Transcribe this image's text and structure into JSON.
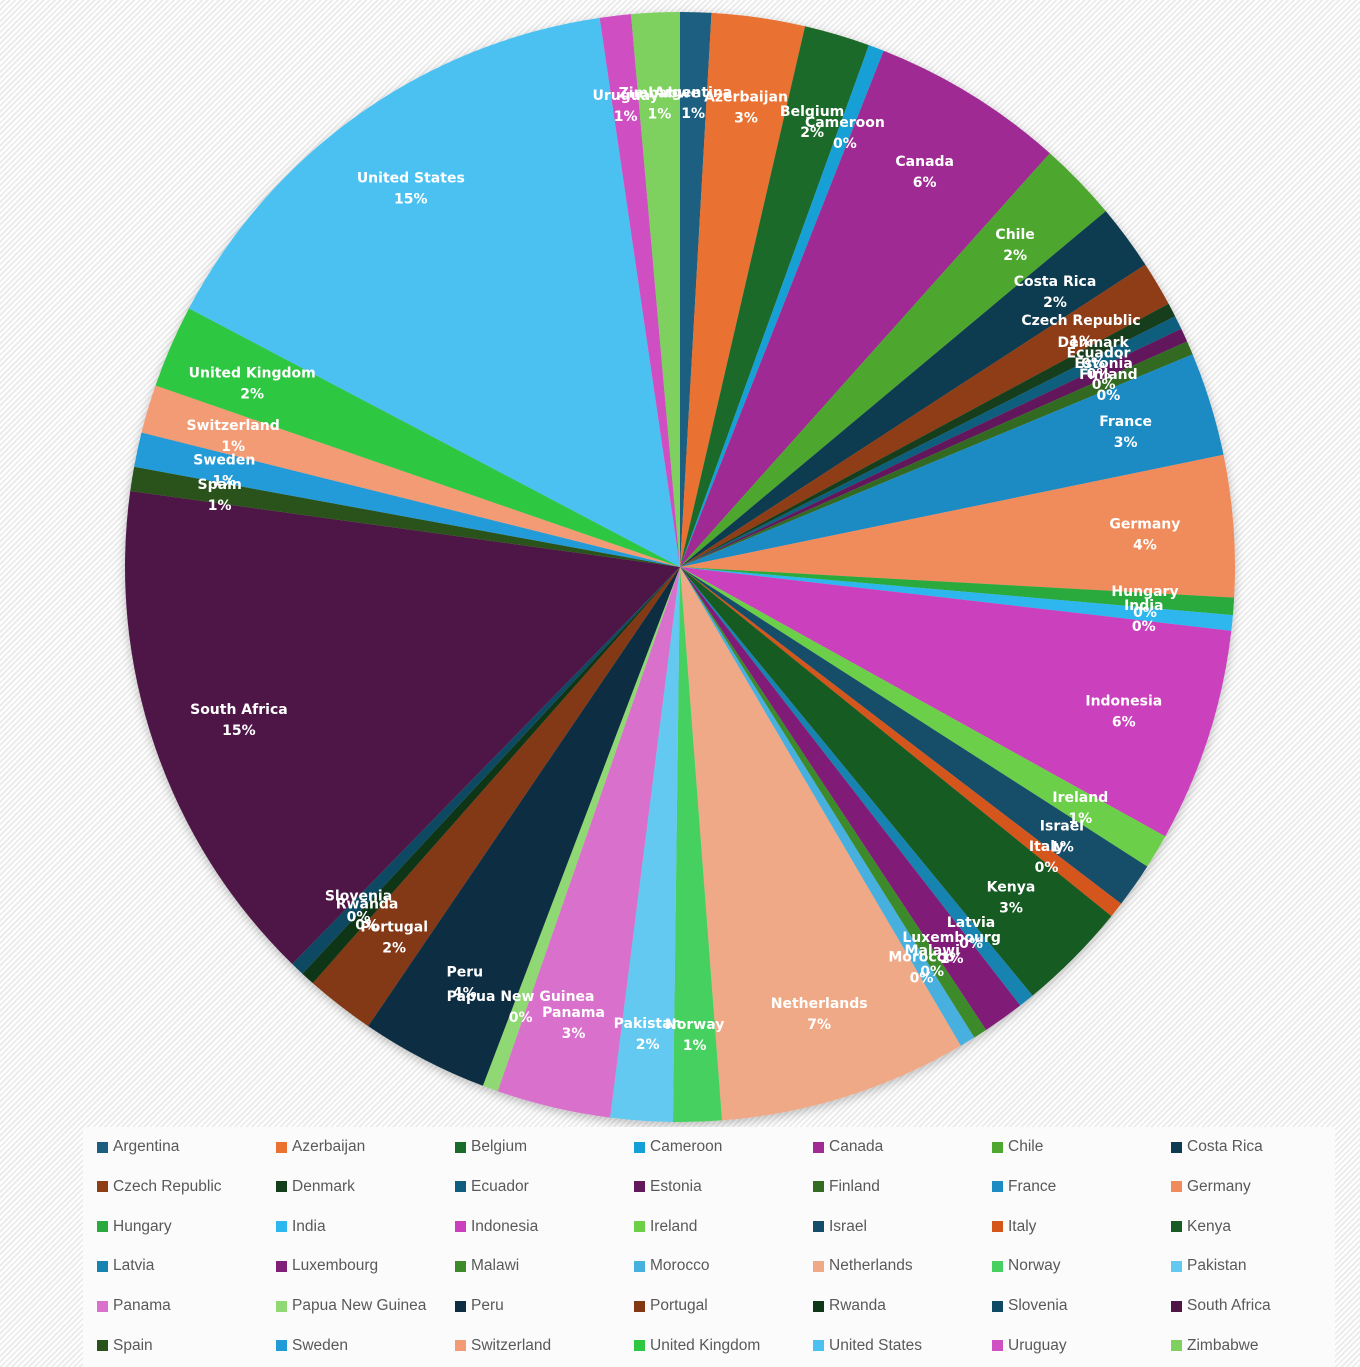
{
  "chart_data": {
    "type": "pie",
    "title": "",
    "start_angle_deg": 0,
    "direction": "clockwise",
    "legend_position": "bottom",
    "categories": [
      "Argentina",
      "Azerbaijan",
      "Belgium",
      "Cameroon",
      "Canada",
      "Chile",
      "Costa Rica",
      "Czech Republic",
      "Denmark",
      "Ecuador",
      "Estonia",
      "Finland",
      "France",
      "Germany",
      "Hungary",
      "India",
      "Indonesia",
      "Ireland",
      "Israel",
      "Italy",
      "Kenya",
      "Latvia",
      "Luxembourg",
      "Malawi",
      "Morocco",
      "Netherlands",
      "Norway",
      "Pakistan",
      "Panama",
      "Papua New Guinea",
      "Peru",
      "Portugal",
      "Rwanda",
      "Slovenia",
      "South Africa",
      "Spain",
      "Sweden",
      "Switzerland",
      "United Kingdom",
      "United States",
      "Uruguay",
      "Zimbabwe"
    ],
    "values": [
      0.9,
      2.7,
      1.9,
      0.45,
      5.6,
      2.3,
      1.9,
      1.3,
      0.4,
      0.4,
      0.4,
      0.4,
      3.0,
      4.1,
      0.5,
      0.45,
      6.2,
      1.0,
      1.3,
      0.45,
      3.2,
      0.45,
      1.2,
      0.4,
      0.45,
      7.2,
      1.4,
      1.8,
      3.3,
      0.45,
      3.7,
      2.0,
      0.4,
      0.4,
      14.8,
      0.7,
      1.0,
      1.4,
      2.4,
      14.9,
      0.9,
      1.4
    ],
    "labels": [
      "1%",
      "3%",
      "2%",
      "0%",
      "6%",
      "2%",
      "2%",
      "1%",
      "0%",
      "0%",
      "0%",
      "0%",
      "3%",
      "4%",
      "0%",
      "0%",
      "6%",
      "1%",
      "1%",
      "0%",
      "3%",
      "0%",
      "1%",
      "0%",
      "0%",
      "7%",
      "1%",
      "2%",
      "3%",
      "0%",
      "4%",
      "2%",
      "0%",
      "0%",
      "15%",
      "1%",
      "1%",
      "1%",
      "2%",
      "15%",
      "1%",
      "1%"
    ],
    "colors": [
      "#1b5e80",
      "#e97132",
      "#1a6b2a",
      "#14a0d6",
      "#a02b93",
      "#4ea72e",
      "#0e3a4f",
      "#8f3e14",
      "#123e1a",
      "#0f5e7d",
      "#62195c",
      "#336b22",
      "#1e8bc3",
      "#f08c5c",
      "#2aaa3e",
      "#2eb7ee",
      "#cb3fbd",
      "#6ccf48",
      "#134d69",
      "#d4561a",
      "#185c23",
      "#1583b0",
      "#801f78",
      "#3e8a2a",
      "#46b0df",
      "#f0a986",
      "#45d05f",
      "#64c9f0",
      "#d970cb",
      "#8fd873",
      "#0d2e42",
      "#833813",
      "#0f3617",
      "#0e4a63",
      "#4e1746",
      "#29521b",
      "#209bd8",
      "#f39b74",
      "#2ec742",
      "#4bc1f2",
      "#cf50c3",
      "#7ed05f"
    ]
  }
}
